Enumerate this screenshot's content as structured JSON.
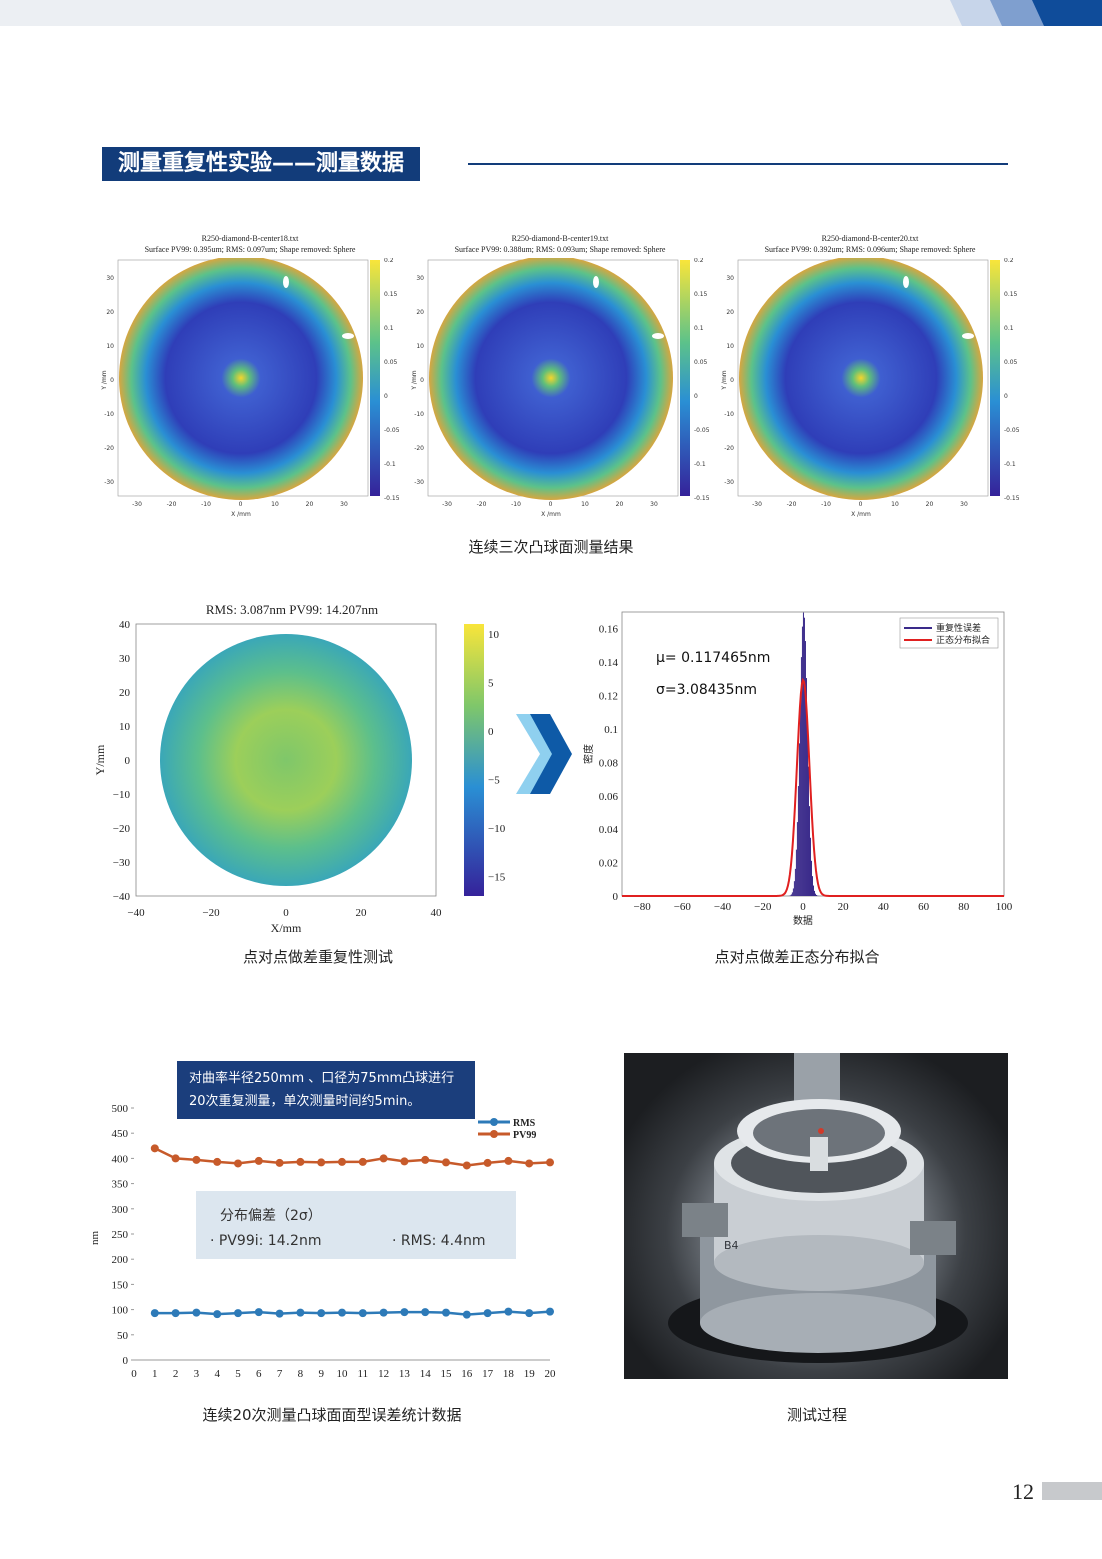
{
  "section_title": "测量重复性实验——测量数据",
  "colors": {
    "brand": "#123c7a",
    "rms": "#2d7ab8",
    "pv99": "#c75a2a",
    "hist": "#3a2a8a",
    "fit": "#e02020"
  },
  "maps": [
    {
      "file": "R250-diamond-B-center18.txt",
      "summary": "Surface PV99: 0.395um; RMS: 0.097um; Shape removed: Sphere"
    },
    {
      "file": "R250-diamond-B-center19.txt",
      "summary": "Surface PV99: 0.388um; RMS: 0.093um; Shape removed: Sphere"
    },
    {
      "file": "R250-diamond-B-center20.txt",
      "summary": "Surface PV99: 0.392um; RMS: 0.096um; Shape removed: Sphere"
    }
  ],
  "map_axes": {
    "xlabel": "X /mm",
    "ylabel": "Y /mm",
    "xticks": [
      "-30",
      "-20",
      "-10",
      "0",
      "10",
      "20",
      "30"
    ],
    "yticks": [
      "30",
      "20",
      "10",
      "0",
      "-10",
      "-20",
      "-30"
    ],
    "cbar_ticks": [
      "0.2",
      "0.15",
      "0.1",
      "0.05",
      "0",
      "-0.05",
      "-0.1",
      "-0.15"
    ]
  },
  "caption_maps": "连续三次凸球面测量结果",
  "diff_map": {
    "title": "RMS: 3.087nm PV99: 14.207nm",
    "xlabel": "X/mm",
    "ylabel": "Y/mm",
    "xticks": [
      "−40",
      "−20",
      "0",
      "20",
      "40"
    ],
    "yticks": [
      "40",
      "30",
      "20",
      "10",
      "0",
      "−10",
      "−20",
      "−30",
      "−40"
    ],
    "cbar_ticks": [
      "10",
      "5",
      "0",
      "−5",
      "−10",
      "−15"
    ]
  },
  "caption_diff": "点对点做差重复性测试",
  "hist": {
    "mu": "μ= 0.117465nm",
    "sigma": "σ=3.08435nm",
    "ylabel": "密度",
    "xlabel": "数据",
    "legend": [
      "重复性误差",
      "正态分布拟合"
    ],
    "xticks": [
      "−80",
      "−60",
      "−40",
      "−20",
      "0",
      "20",
      "40",
      "60",
      "80",
      "100"
    ],
    "yticks": [
      "0.16",
      "0.14",
      "0.12",
      "0.1",
      "0.08",
      "0.06",
      "0.04",
      "0.02",
      "0"
    ]
  },
  "caption_hist": "点对点做差正态分布拟合",
  "note": [
    "对曲率半径250mm 、口径为75mm凸球进行",
    "20次重复测量，单次测量时间约5min。"
  ],
  "stats": {
    "title": "分布偏差（2σ）",
    "pv": "· PV99i:  14.2nm",
    "rms": "· RMS:  4.4nm"
  },
  "chart_data": {
    "type": "line",
    "x": [
      1,
      2,
      3,
      4,
      5,
      6,
      7,
      8,
      9,
      10,
      11,
      12,
      13,
      14,
      15,
      16,
      17,
      18,
      19,
      20
    ],
    "xticks": [
      "0",
      "1",
      "2",
      "3",
      "4",
      "5",
      "6",
      "7",
      "8",
      "9",
      "10",
      "11",
      "12",
      "13",
      "14",
      "15",
      "16",
      "17",
      "18",
      "19",
      "20"
    ],
    "ylabel": "nm",
    "ylim": [
      0,
      500
    ],
    "yticks": [
      "500",
      "450",
      "400",
      "350",
      "300",
      "250",
      "200",
      "150",
      "100",
      "50",
      "0"
    ],
    "legend_position": "top-right",
    "series": [
      {
        "name": "RMS",
        "values": [
          93,
          93,
          94,
          91,
          93,
          95,
          92,
          94,
          93,
          94,
          93,
          94,
          95,
          95,
          94,
          90,
          93,
          96,
          93,
          96
        ]
      },
      {
        "name": "PV99",
        "values": [
          420,
          400,
          397,
          393,
          390,
          395,
          391,
          393,
          392,
          393,
          393,
          400,
          394,
          397,
          392,
          386,
          391,
          395,
          390,
          392
        ]
      }
    ]
  },
  "caption_line": "连续20次测量凸球面面型误差统计数据",
  "caption_photo": "测试过程",
  "photo_label": "B4",
  "page_number": "12"
}
